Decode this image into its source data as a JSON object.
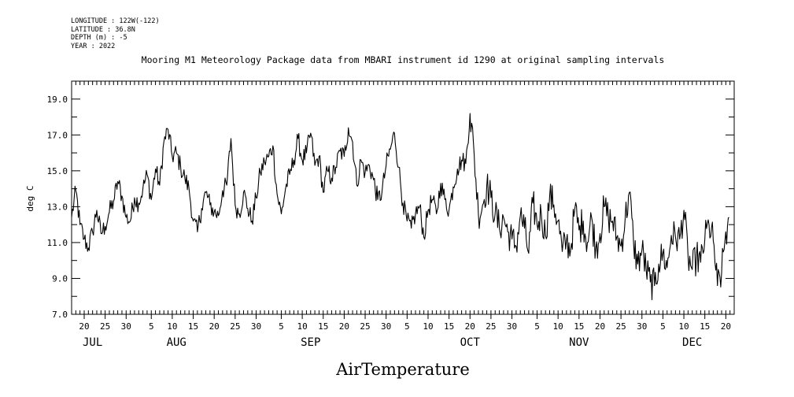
{
  "meta": {
    "longitude": "LONGITUDE : 122W(-122)",
    "latitude": "LATITUDE : 36.8N",
    "depth": "DEPTH (m) : -5",
    "year": "YEAR : 2022"
  },
  "chart_data": {
    "type": "line",
    "title": "Mooring M1 Meteorology Package data from MBARI instrument id 1290 at original sampling intervals",
    "ylabel": "deg C",
    "xlabel": "AirTemperature",
    "ylim": [
      7.0,
      20.0
    ],
    "xlim": [
      "2022-07-17",
      "2022-12-22"
    ],
    "y_ticks": [
      "7.0",
      "9.0",
      "11.0",
      "13.0",
      "15.0",
      "17.0",
      "19.0"
    ],
    "x_day_ticks": [
      {
        "date": "2022-07-20",
        "label": "20"
      },
      {
        "date": "2022-07-25",
        "label": "25"
      },
      {
        "date": "2022-07-30",
        "label": "30"
      },
      {
        "date": "2022-08-05",
        "label": "5"
      },
      {
        "date": "2022-08-10",
        "label": "10"
      },
      {
        "date": "2022-08-15",
        "label": "15"
      },
      {
        "date": "2022-08-20",
        "label": "20"
      },
      {
        "date": "2022-08-25",
        "label": "25"
      },
      {
        "date": "2022-08-30",
        "label": "30"
      },
      {
        "date": "2022-09-05",
        "label": "5"
      },
      {
        "date": "2022-09-10",
        "label": "10"
      },
      {
        "date": "2022-09-15",
        "label": "15"
      },
      {
        "date": "2022-09-20",
        "label": "20"
      },
      {
        "date": "2022-09-25",
        "label": "25"
      },
      {
        "date": "2022-09-30",
        "label": "30"
      },
      {
        "date": "2022-10-05",
        "label": "5"
      },
      {
        "date": "2022-10-10",
        "label": "10"
      },
      {
        "date": "2022-10-15",
        "label": "15"
      },
      {
        "date": "2022-10-20",
        "label": "20"
      },
      {
        "date": "2022-10-25",
        "label": "25"
      },
      {
        "date": "2022-10-30",
        "label": "30"
      },
      {
        "date": "2022-11-05",
        "label": "5"
      },
      {
        "date": "2022-11-10",
        "label": "10"
      },
      {
        "date": "2022-11-15",
        "label": "15"
      },
      {
        "date": "2022-11-20",
        "label": "20"
      },
      {
        "date": "2022-11-25",
        "label": "25"
      },
      {
        "date": "2022-11-30",
        "label": "30"
      },
      {
        "date": "2022-12-05",
        "label": "5"
      },
      {
        "date": "2022-12-10",
        "label": "10"
      },
      {
        "date": "2022-12-15",
        "label": "15"
      },
      {
        "date": "2022-12-20",
        "label": "20"
      }
    ],
    "x_month_labels": [
      {
        "date": "2022-07-22",
        "label": "JUL"
      },
      {
        "date": "2022-08-11",
        "label": "AUG"
      },
      {
        "date": "2022-09-12",
        "label": "SEP"
      },
      {
        "date": "2022-10-20",
        "label": "OCT"
      },
      {
        "date": "2022-11-15",
        "label": "NOV"
      },
      {
        "date": "2022-12-12",
        "label": "DEC"
      }
    ],
    "series": [
      {
        "x": [
          "2022-07-17",
          "2022-07-18",
          "2022-07-19",
          "2022-07-20",
          "2022-07-21",
          "2022-07-22",
          "2022-07-23",
          "2022-07-24",
          "2022-07-25",
          "2022-07-26",
          "2022-07-27",
          "2022-07-28",
          "2022-07-29",
          "2022-07-30",
          "2022-07-31",
          "2022-08-01",
          "2022-08-02",
          "2022-08-03",
          "2022-08-04",
          "2022-08-05",
          "2022-08-06",
          "2022-08-07",
          "2022-08-08",
          "2022-08-09",
          "2022-08-10",
          "2022-08-11",
          "2022-08-12",
          "2022-08-13",
          "2022-08-14",
          "2022-08-15",
          "2022-08-16",
          "2022-08-17",
          "2022-08-18",
          "2022-08-19",
          "2022-08-20",
          "2022-08-21",
          "2022-08-22",
          "2022-08-23",
          "2022-08-24",
          "2022-08-25",
          "2022-08-26",
          "2022-08-27",
          "2022-08-28",
          "2022-08-29",
          "2022-08-30",
          "2022-08-31",
          "2022-09-01",
          "2022-09-02",
          "2022-09-03",
          "2022-09-04",
          "2022-09-05",
          "2022-09-06",
          "2022-09-07",
          "2022-09-08",
          "2022-09-09",
          "2022-09-10",
          "2022-09-11",
          "2022-09-12",
          "2022-09-13",
          "2022-09-14",
          "2022-09-15",
          "2022-09-16",
          "2022-09-17",
          "2022-09-18",
          "2022-09-19",
          "2022-09-20",
          "2022-09-21",
          "2022-09-22",
          "2022-09-23",
          "2022-09-24",
          "2022-09-25",
          "2022-09-26",
          "2022-09-27",
          "2022-09-28",
          "2022-09-29",
          "2022-09-30",
          "2022-10-01",
          "2022-10-02",
          "2022-10-03",
          "2022-10-04",
          "2022-10-05",
          "2022-10-06",
          "2022-10-07",
          "2022-10-08",
          "2022-10-09",
          "2022-10-10",
          "2022-10-11",
          "2022-10-12",
          "2022-10-13",
          "2022-10-14",
          "2022-10-15",
          "2022-10-16",
          "2022-10-17",
          "2022-10-18",
          "2022-10-19",
          "2022-10-20",
          "2022-10-21",
          "2022-10-22",
          "2022-10-23",
          "2022-10-24",
          "2022-10-25",
          "2022-10-26",
          "2022-10-27",
          "2022-10-28",
          "2022-10-29",
          "2022-10-30",
          "2022-10-31",
          "2022-11-01",
          "2022-11-02",
          "2022-11-03",
          "2022-11-04",
          "2022-11-05",
          "2022-11-06",
          "2022-11-07",
          "2022-11-08",
          "2022-11-09",
          "2022-11-10",
          "2022-11-11",
          "2022-11-12",
          "2022-11-13",
          "2022-11-14",
          "2022-11-15",
          "2022-11-16",
          "2022-11-17",
          "2022-11-18",
          "2022-11-19",
          "2022-11-20",
          "2022-11-21",
          "2022-11-22",
          "2022-11-23",
          "2022-11-24",
          "2022-11-25",
          "2022-11-26",
          "2022-11-27",
          "2022-11-28",
          "2022-11-29",
          "2022-11-30",
          "2022-12-01",
          "2022-12-02",
          "2022-12-03",
          "2022-12-04",
          "2022-12-05",
          "2022-12-06",
          "2022-12-07",
          "2022-12-08",
          "2022-12-09",
          "2022-12-10",
          "2022-12-11",
          "2022-12-12",
          "2022-12-13",
          "2022-12-14",
          "2022-12-15",
          "2022-12-16",
          "2022-12-17",
          "2022-12-18",
          "2022-12-19",
          "2022-12-20"
        ],
        "values": [
          12.4,
          13.9,
          12.0,
          11.2,
          10.7,
          11.6,
          12.8,
          11.5,
          11.9,
          12.7,
          13.3,
          14.4,
          13.6,
          12.4,
          12.2,
          13.5,
          13.2,
          14.0,
          14.8,
          13.4,
          15.1,
          14.2,
          16.6,
          17.3,
          15.8,
          16.0,
          15.2,
          14.6,
          14.0,
          12.2,
          11.6,
          12.9,
          13.8,
          13.1,
          12.7,
          12.5,
          13.9,
          14.2,
          16.8,
          13.1,
          12.6,
          13.8,
          12.9,
          12.2,
          13.5,
          14.9,
          15.5,
          15.8,
          16.4,
          13.7,
          12.6,
          14.0,
          14.8,
          15.6,
          16.8,
          15.6,
          16.0,
          17.1,
          15.3,
          15.8,
          13.8,
          15.0,
          14.6,
          15.2,
          16.1,
          15.8,
          17.4,
          16.6,
          14.2,
          15.6,
          14.9,
          15.3,
          14.5,
          13.4,
          13.8,
          15.3,
          16.2,
          17.1,
          15.2,
          13.2,
          12.2,
          11.8,
          12.6,
          13.0,
          11.3,
          12.8,
          13.4,
          12.6,
          14.3,
          13.4,
          12.8,
          14.1,
          15.1,
          15.6,
          15.4,
          18.2,
          15.9,
          12.6,
          13.1,
          14.2,
          13.5,
          12.6,
          11.8,
          12.4,
          11.6,
          11.2,
          10.8,
          12.5,
          11.8,
          10.4,
          13.2,
          12.0,
          12.6,
          11.4,
          13.6,
          13.1,
          12.2,
          10.5,
          11.1,
          10.6,
          12.9,
          11.7,
          12.2,
          11.0,
          12.4,
          10.7,
          11.5,
          13.0,
          12.4,
          12.2,
          11.3,
          10.8,
          12.3,
          13.8,
          11.0,
          9.8,
          10.6,
          9.5,
          8.8,
          8.6,
          9.8,
          10.4,
          9.6,
          11.4,
          11.3,
          11.2,
          12.8,
          10.2,
          9.5,
          10.2,
          9.9,
          11.2,
          12.0,
          11.1,
          8.6,
          9.3,
          11.6
        ]
      }
    ]
  }
}
